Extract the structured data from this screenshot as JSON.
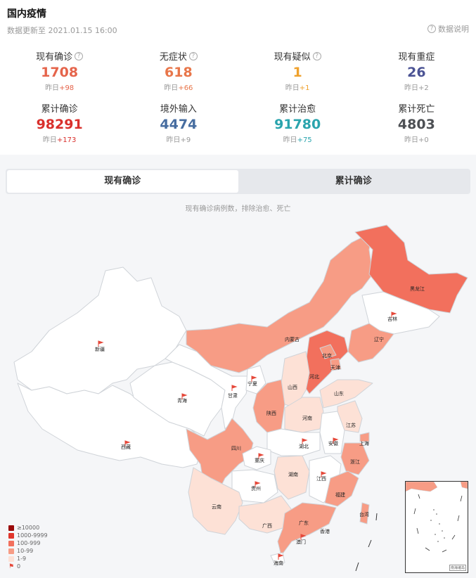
{
  "header": {
    "title": "国内疫情",
    "updated": "数据更新至 2021.01.15 16:00",
    "help_label": "数据说明"
  },
  "stats": [
    {
      "label": "现有确诊",
      "value": "1708",
      "delta_prefix": "昨日",
      "delta": "+98",
      "color": "#e5644b",
      "delta_color": "#e5644b",
      "help": true
    },
    {
      "label": "无症状",
      "value": "618",
      "delta_prefix": "昨日",
      "delta": "+66",
      "color": "#e8764a",
      "delta_color": "#e8764a",
      "help": true
    },
    {
      "label": "现有疑似",
      "value": "1",
      "delta_prefix": "昨日",
      "delta": "+1",
      "color": "#efa12c",
      "delta_color": "#efa12c",
      "help": true
    },
    {
      "label": "现有重症",
      "value": "26",
      "delta_prefix": "昨日",
      "delta": "+2",
      "color": "#4b5394",
      "delta_color": "#999999",
      "help": false
    },
    {
      "label": "累计确诊",
      "value": "98291",
      "delta_prefix": "昨日",
      "delta": "+173",
      "color": "#d9302c",
      "delta_color": "#d9302c",
      "help": false
    },
    {
      "label": "境外输入",
      "value": "4474",
      "delta_prefix": "昨日",
      "delta": "+9",
      "color": "#476da0",
      "delta_color": "#999999",
      "help": false
    },
    {
      "label": "累计治愈",
      "value": "91780",
      "delta_prefix": "昨日",
      "delta": "+75",
      "color": "#2aa4ad",
      "delta_color": "#2aa4ad",
      "help": false
    },
    {
      "label": "累计死亡",
      "value": "4803",
      "delta_prefix": "昨日",
      "delta": "+0",
      "color": "#4d5054",
      "delta_color": "#999999",
      "help": false
    }
  ],
  "tabs": [
    {
      "label": "现有确诊",
      "active": true
    },
    {
      "label": "累计确诊",
      "active": false
    }
  ],
  "map": {
    "caption": "现有确诊病例数，排除治愈、死亡",
    "inset_caption": "南海诸岛",
    "provinces": [
      {
        "name": "新疆",
        "level": "0"
      },
      {
        "name": "西藏",
        "level": "0"
      },
      {
        "name": "青海",
        "level": "0"
      },
      {
        "name": "甘肃",
        "level": "0"
      },
      {
        "name": "宁夏",
        "level": "0"
      },
      {
        "name": "内蒙古",
        "level": "10-99"
      },
      {
        "name": "黑龙江",
        "level": "100-999"
      },
      {
        "name": "吉林",
        "level": "0"
      },
      {
        "name": "辽宁",
        "level": "10-99"
      },
      {
        "name": "北京",
        "level": "10-99"
      },
      {
        "name": "天津",
        "level": "10-99"
      },
      {
        "name": "河北",
        "level": "100-999"
      },
      {
        "name": "山西",
        "level": "1-9"
      },
      {
        "name": "陕西",
        "level": "10-99"
      },
      {
        "name": "山东",
        "level": "1-9"
      },
      {
        "name": "河南",
        "level": "1-9"
      },
      {
        "name": "江苏",
        "level": "1-9"
      },
      {
        "name": "安徽",
        "level": "0"
      },
      {
        "name": "上海",
        "level": "10-99"
      },
      {
        "name": "湖北",
        "level": "0"
      },
      {
        "name": "四川",
        "level": "10-99"
      },
      {
        "name": "重庆",
        "level": "0"
      },
      {
        "name": "浙江",
        "level": "10-99"
      },
      {
        "name": "湖南",
        "level": "1-9"
      },
      {
        "name": "江西",
        "level": "0"
      },
      {
        "name": "贵州",
        "level": "0"
      },
      {
        "name": "云南",
        "level": "1-9"
      },
      {
        "name": "福建",
        "level": "10-99"
      },
      {
        "name": "广西",
        "level": "1-9"
      },
      {
        "name": "广东",
        "level": "10-99"
      },
      {
        "name": "台湾",
        "level": "10-99"
      },
      {
        "name": "香港",
        "level": "100-999"
      },
      {
        "name": "澳门",
        "level": "0"
      },
      {
        "name": "海南",
        "level": "0"
      }
    ]
  },
  "legend": [
    {
      "label": "≥10000",
      "color": "#9a0a0a"
    },
    {
      "label": "1000-9999",
      "color": "#e0352b"
    },
    {
      "label": "100-999",
      "color": "#f2705d"
    },
    {
      "label": "10-99",
      "color": "#f79c85"
    },
    {
      "label": "1-9",
      "color": "#fde1d6"
    },
    {
      "label": "0",
      "color": "#ffffff"
    }
  ]
}
